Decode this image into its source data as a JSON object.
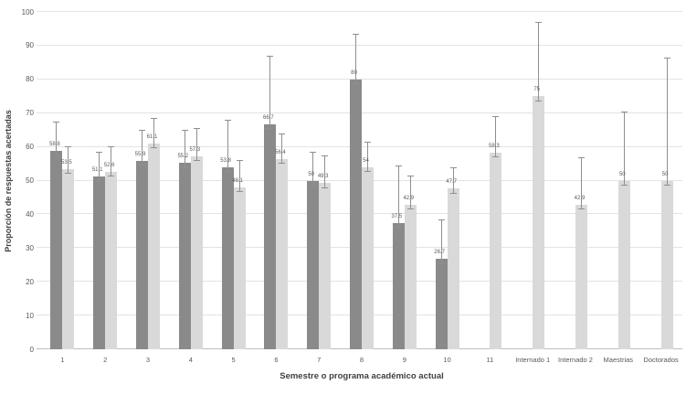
{
  "chart_data": {
    "type": "bar",
    "title": "",
    "xlabel": "Semestre o programa académico actual",
    "ylabel": "Proporción de respuestas acertadas",
    "ylim": [
      0,
      100
    ],
    "ytick_step": 10,
    "grid": true,
    "legend": "none",
    "categories": [
      "1",
      "2",
      "3",
      "4",
      "5",
      "6",
      "7",
      "8",
      "9",
      "10",
      "11",
      "Internado 1",
      "Internado 2",
      "Maestrias",
      "Doctorados"
    ],
    "series": [
      {
        "key": "dark-gray-series",
        "color": "#8a8a8a",
        "values": [
          58.8,
          51.1,
          55.9,
          55.2,
          53.8,
          66.7,
          50,
          80,
          37.5,
          26.7,
          null,
          null,
          null,
          null,
          null
        ],
        "labels": [
          "58.8",
          "51.1",
          "55.9",
          "55.2",
          "53.8",
          "66.7",
          "50",
          "80",
          "37.5",
          "26.7",
          "",
          "",
          "",
          "",
          ""
        ],
        "error_upper": [
          67,
          58,
          64.5,
          64.5,
          67.5,
          86.5,
          58,
          93,
          54,
          38,
          null,
          null,
          null,
          null,
          null
        ]
      },
      {
        "key": "light-gray-series",
        "color": "#d9d9d9",
        "values": [
          53.5,
          52.6,
          61.1,
          57.3,
          48.1,
          56.4,
          49.3,
          54,
          42.9,
          47.7,
          58.3,
          75,
          42.9,
          50,
          50
        ],
        "labels": [
          "53.5",
          "52.6",
          "61.1",
          "57.3",
          "48.1",
          "56.4",
          "49.3",
          "54",
          "42.9",
          "47.7",
          "58.3",
          "75",
          "42.9",
          "50",
          "50"
        ],
        "error_upper": [
          59.5,
          59.5,
          68,
          65,
          55.5,
          63.5,
          57,
          61,
          51,
          53.5,
          68.5,
          96.5,
          56.5,
          70,
          86
        ]
      }
    ],
    "error_lower_delta": 1.5,
    "colors": {
      "background": "#ffffff",
      "gridline": "#e3e3e3",
      "axis_line": "#bdbdbd",
      "error_bar": "#8f8f8f",
      "text": "#595959"
    }
  }
}
